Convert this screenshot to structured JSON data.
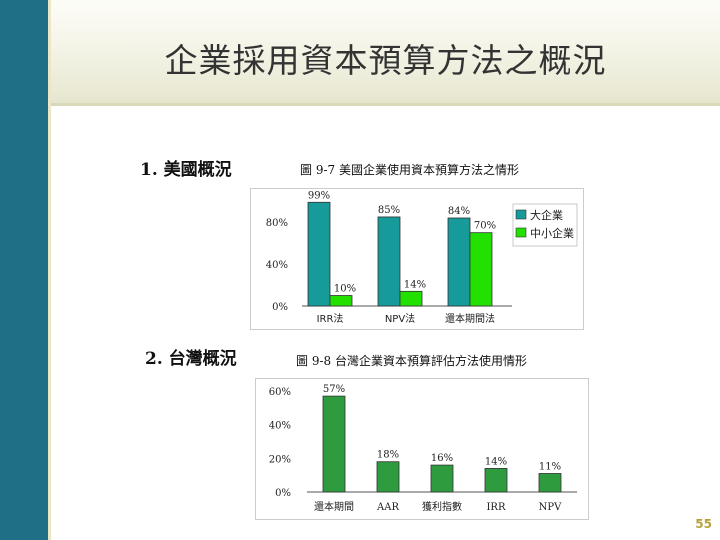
{
  "slide": {
    "title": "企業採用資本預算方法之概況",
    "section1": "1. 美國概況",
    "section2": "2. 台灣概況",
    "page_number": "55",
    "left_bar_color": "#1f6f87"
  },
  "chart_data": [
    {
      "type": "bar",
      "title": "圖 9-7  美國企業使用資本預算方法之情形",
      "categories": [
        "IRR法",
        "NPV法",
        "還本期間法"
      ],
      "series": [
        {
          "name": "大企業",
          "values": [
            99,
            85,
            84
          ],
          "labels": [
            "99%",
            "85%",
            "84%"
          ],
          "color": "#169a9a"
        },
        {
          "name": "中小企業",
          "values": [
            10,
            14,
            70
          ],
          "labels": [
            "10%",
            "14%",
            "70%"
          ],
          "color": "#22e000"
        }
      ],
      "yticks": [
        0,
        40,
        80
      ],
      "ytick_labels": [
        "0%",
        "40%",
        "80%"
      ],
      "ylim": [
        0,
        105
      ],
      "legend": "top-right",
      "grid": false
    },
    {
      "type": "bar",
      "title": "圖 9-8  台灣企業資本預算評估方法使用情形",
      "categories": [
        "還本期間",
        "AAR",
        "獲利指數",
        "IRR",
        "NPV"
      ],
      "values": [
        57,
        18,
        16,
        14,
        11
      ],
      "labels": [
        "57%",
        "18%",
        "16%",
        "14%",
        "11%"
      ],
      "color": "#2e9b3e",
      "yticks": [
        0,
        20,
        40,
        60
      ],
      "ytick_labels": [
        "0%",
        "20%",
        "40%",
        "60%"
      ],
      "ylim": [
        0,
        63
      ],
      "grid": false
    }
  ]
}
